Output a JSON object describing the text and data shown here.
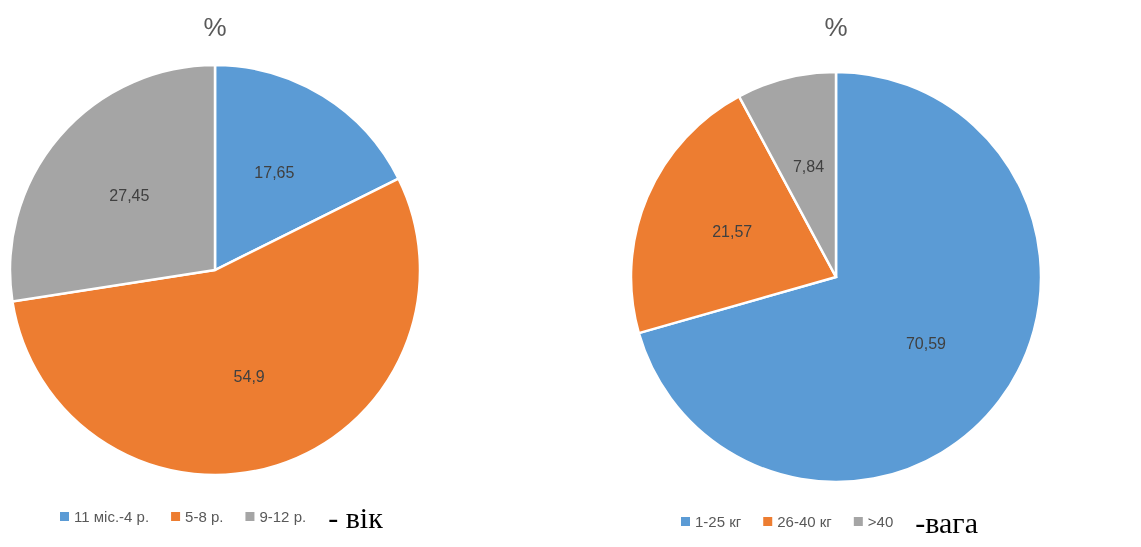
{
  "chart_data": [
    {
      "type": "pie",
      "title": "%",
      "categories": [
        "11 міс.-4 р.",
        "5-8 р.",
        "9-12 р."
      ],
      "values": [
        17.65,
        54.9,
        27.45
      ],
      "value_labels": [
        "17,65",
        "54,9",
        "27,45"
      ],
      "colors": [
        "#5b9bd5",
        "#ed7d31",
        "#a5a5a5"
      ],
      "legend": "bottom",
      "annotations": [
        "- вік"
      ]
    },
    {
      "type": "pie",
      "title": "%",
      "categories": [
        "1-25 кг",
        "26-40 кг",
        ">40"
      ],
      "values": [
        70.59,
        21.57,
        7.84
      ],
      "value_labels": [
        "70,59",
        "21,57",
        "7,84"
      ],
      "colors": [
        "#5b9bd5",
        "#ed7d31",
        "#a5a5a5"
      ],
      "legend": "bottom",
      "annotations": [
        "-вага"
      ]
    }
  ]
}
